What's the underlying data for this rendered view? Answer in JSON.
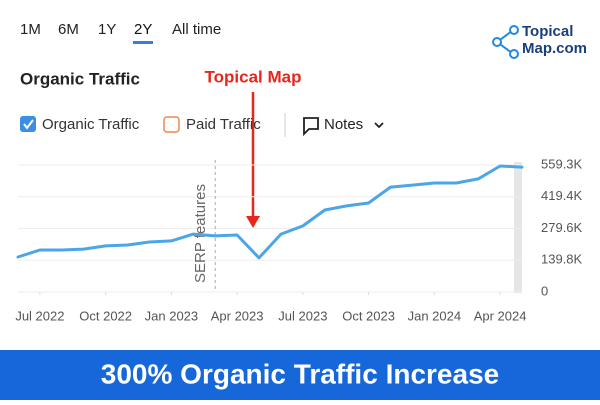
{
  "tabs": {
    "items": [
      "1M",
      "6M",
      "1Y",
      "2Y",
      "All time"
    ],
    "active_index": 3
  },
  "logo": {
    "lines": [
      "Topical",
      "Map.com"
    ]
  },
  "heading": "Organic Traffic",
  "legend": {
    "items": [
      "Organic Traffic",
      "Paid Traffic"
    ],
    "notes": "Notes"
  },
  "callout": "Topical Map",
  "banner": "300% Organic Traffic Increase",
  "chart_data": {
    "type": "line",
    "x": [
      "2022-06",
      "2022-07",
      "2022-08",
      "2022-09",
      "2022-10",
      "2022-11",
      "2022-12",
      "2023-01",
      "2023-02",
      "2023-03",
      "2023-04",
      "2023-05",
      "2023-06",
      "2023-07",
      "2023-08",
      "2023-09",
      "2023-10",
      "2023-11",
      "2023-12",
      "2024-01",
      "2024-02",
      "2024-03",
      "2024-04",
      "2024-05"
    ],
    "series": [
      {
        "name": "Organic Traffic",
        "color": "#4ba6e8",
        "values": [
          154,
          185,
          185,
          189,
          203,
          207,
          220,
          225,
          255,
          247,
          251,
          150,
          255,
          291,
          361,
          379,
          392,
          462,
          471,
          480,
          480,
          498,
          555,
          550
        ]
      }
    ],
    "xlim": [
      "2022-06",
      "2024-05"
    ],
    "xticks": [
      {
        "value": "2022-07",
        "label": "Jul 2022"
      },
      {
        "value": "2022-10",
        "label": "Oct 2022"
      },
      {
        "value": "2023-01",
        "label": "Jan 2023"
      },
      {
        "value": "2023-04",
        "label": "Apr 2023"
      },
      {
        "value": "2023-07",
        "label": "Jul 2023"
      },
      {
        "value": "2023-10",
        "label": "Oct 2023"
      },
      {
        "value": "2024-01",
        "label": "Jan 2024"
      },
      {
        "value": "2024-04",
        "label": "Apr 2024"
      }
    ],
    "ylim": [
      0,
      559.3
    ],
    "yticks": [
      0,
      {
        "value": 139.8,
        "label": "139.8K"
      },
      {
        "value": 279.6,
        "label": "279.6K"
      },
      {
        "value": 419.4,
        "label": "419.4K"
      },
      {
        "value": 559.3,
        "label": "559.3K"
      }
    ],
    "grid": true,
    "annotations": [
      {
        "text": "SERP features",
        "x": "2023-03"
      }
    ]
  }
}
